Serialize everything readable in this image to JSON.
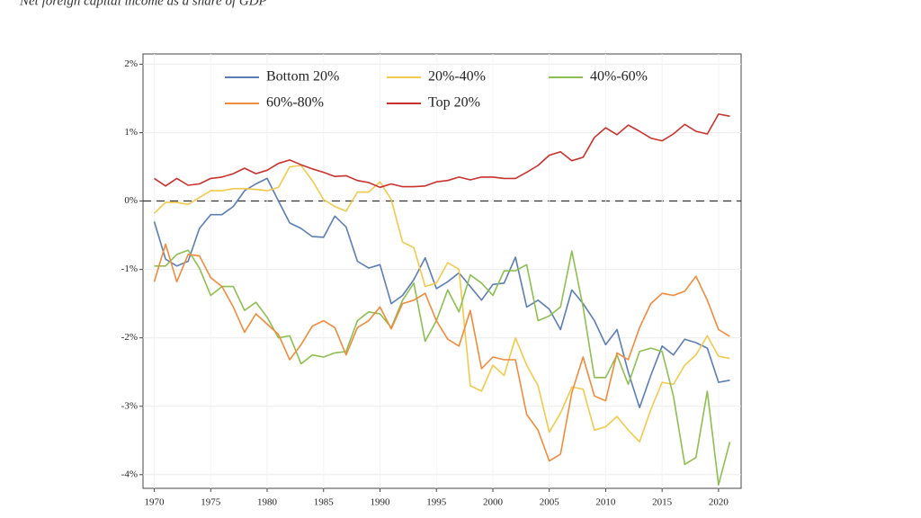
{
  "chart_data": {
    "type": "line",
    "title": "Net foreign capital income as a share of GDP",
    "x": [
      1970,
      1971,
      1972,
      1973,
      1974,
      1975,
      1976,
      1977,
      1978,
      1979,
      1980,
      1981,
      1982,
      1983,
      1984,
      1985,
      1986,
      1987,
      1988,
      1989,
      1990,
      1991,
      1992,
      1993,
      1994,
      1995,
      1996,
      1997,
      1998,
      1999,
      2000,
      2001,
      2002,
      2003,
      2004,
      2005,
      2006,
      2007,
      2008,
      2009,
      2010,
      2011,
      2012,
      2013,
      2014,
      2015,
      2016,
      2017,
      2018,
      2019,
      2020,
      2021
    ],
    "series": [
      {
        "name": "Bottom 20%",
        "color": "#5b7db3",
        "values": [
          -0.3,
          -0.85,
          -0.95,
          -0.88,
          -0.4,
          -0.2,
          -0.2,
          -0.08,
          0.15,
          0.25,
          0.33,
          0.0,
          -0.32,
          -0.4,
          -0.52,
          -0.53,
          -0.22,
          -0.38,
          -0.88,
          -0.98,
          -0.93,
          -1.5,
          -1.38,
          -1.15,
          -0.83,
          -1.28,
          -1.18,
          -1.05,
          -1.25,
          -1.45,
          -1.22,
          -1.2,
          -0.82,
          -1.55,
          -1.45,
          -1.58,
          -1.88,
          -1.3,
          -1.5,
          -1.75,
          -2.1,
          -1.88,
          -2.5,
          -3.02,
          -2.55,
          -2.12,
          -2.25,
          -2.02,
          -2.07,
          -2.15,
          -2.65,
          -2.62
        ]
      },
      {
        "name": "20%-40%",
        "color": "#f2c94c",
        "values": [
          -0.18,
          -0.02,
          -0.02,
          -0.05,
          0.05,
          0.15,
          0.15,
          0.18,
          0.18,
          0.17,
          0.15,
          0.2,
          0.5,
          0.52,
          0.3,
          0.02,
          -0.08,
          -0.15,
          0.13,
          0.13,
          0.28,
          0.02,
          -0.6,
          -0.68,
          -1.25,
          -1.2,
          -0.9,
          -1.0,
          -2.7,
          -2.78,
          -2.4,
          -2.55,
          -2.0,
          -2.4,
          -2.7,
          -3.38,
          -3.1,
          -2.72,
          -2.75,
          -3.35,
          -3.3,
          -3.15,
          -3.35,
          -3.52,
          -3.05,
          -2.65,
          -2.68,
          -2.4,
          -2.25,
          -1.97,
          -2.27,
          -2.3
        ]
      },
      {
        "name": "40%-60%",
        "color": "#8cbf4f",
        "values": [
          -0.95,
          -0.95,
          -0.78,
          -0.72,
          -0.98,
          -1.38,
          -1.25,
          -1.25,
          -1.6,
          -1.48,
          -1.7,
          -2.0,
          -1.97,
          -2.38,
          -2.25,
          -2.28,
          -2.22,
          -2.2,
          -1.75,
          -1.62,
          -1.65,
          -1.85,
          -1.45,
          -1.2,
          -2.05,
          -1.75,
          -1.3,
          -1.62,
          -1.08,
          -1.2,
          -1.38,
          -1.02,
          -1.02,
          -0.93,
          -1.75,
          -1.68,
          -1.55,
          -0.73,
          -1.55,
          -2.58,
          -2.58,
          -2.25,
          -2.68,
          -2.2,
          -2.15,
          -2.2,
          -2.85,
          -3.85,
          -3.75,
          -2.78,
          -4.15,
          -3.52
        ]
      },
      {
        "name": "60%-80%",
        "color": "#f08a3c",
        "values": [
          -1.18,
          -0.63,
          -1.18,
          -0.78,
          -0.8,
          -1.12,
          -1.25,
          -1.55,
          -1.92,
          -1.65,
          -1.8,
          -1.95,
          -2.32,
          -2.1,
          -1.83,
          -1.75,
          -1.85,
          -2.25,
          -1.85,
          -1.75,
          -1.55,
          -1.87,
          -1.5,
          -1.45,
          -1.35,
          -1.75,
          -2.02,
          -2.12,
          -1.6,
          -2.45,
          -2.28,
          -2.32,
          -2.32,
          -3.12,
          -3.35,
          -3.8,
          -3.7,
          -2.8,
          -2.28,
          -2.85,
          -2.92,
          -2.22,
          -2.32,
          -1.85,
          -1.5,
          -1.35,
          -1.38,
          -1.32,
          -1.1,
          -1.45,
          -1.88,
          -1.98
        ]
      },
      {
        "name": "Top 20%",
        "color": "#c9312c",
        "values": [
          0.33,
          0.22,
          0.33,
          0.23,
          0.25,
          0.33,
          0.35,
          0.4,
          0.48,
          0.4,
          0.45,
          0.55,
          0.6,
          0.53,
          0.47,
          0.42,
          0.36,
          0.37,
          0.3,
          0.27,
          0.2,
          0.25,
          0.21,
          0.21,
          0.22,
          0.28,
          0.3,
          0.35,
          0.31,
          0.35,
          0.35,
          0.33,
          0.33,
          0.42,
          0.52,
          0.67,
          0.72,
          0.59,
          0.64,
          0.93,
          1.07,
          0.97,
          1.11,
          1.02,
          0.92,
          0.88,
          0.98,
          1.12,
          1.02,
          0.98,
          1.27,
          1.24
        ]
      }
    ],
    "xlim": [
      1969,
      2022
    ],
    "xticks": [
      1970,
      1975,
      1980,
      1985,
      1990,
      1995,
      2000,
      2005,
      2010,
      2015,
      2020
    ],
    "ylim": [
      -4.2,
      2.15
    ],
    "yticks": [
      {
        "value": 2,
        "label": "2%"
      },
      {
        "value": 1,
        "label": "1%"
      },
      {
        "value": 0,
        "label": "0%"
      },
      {
        "value": -1,
        "label": "-1%"
      },
      {
        "value": -2,
        "label": "-2%"
      },
      {
        "value": -3,
        "label": "-3%"
      },
      {
        "value": -4,
        "label": "-4%"
      }
    ],
    "grid": true
  }
}
